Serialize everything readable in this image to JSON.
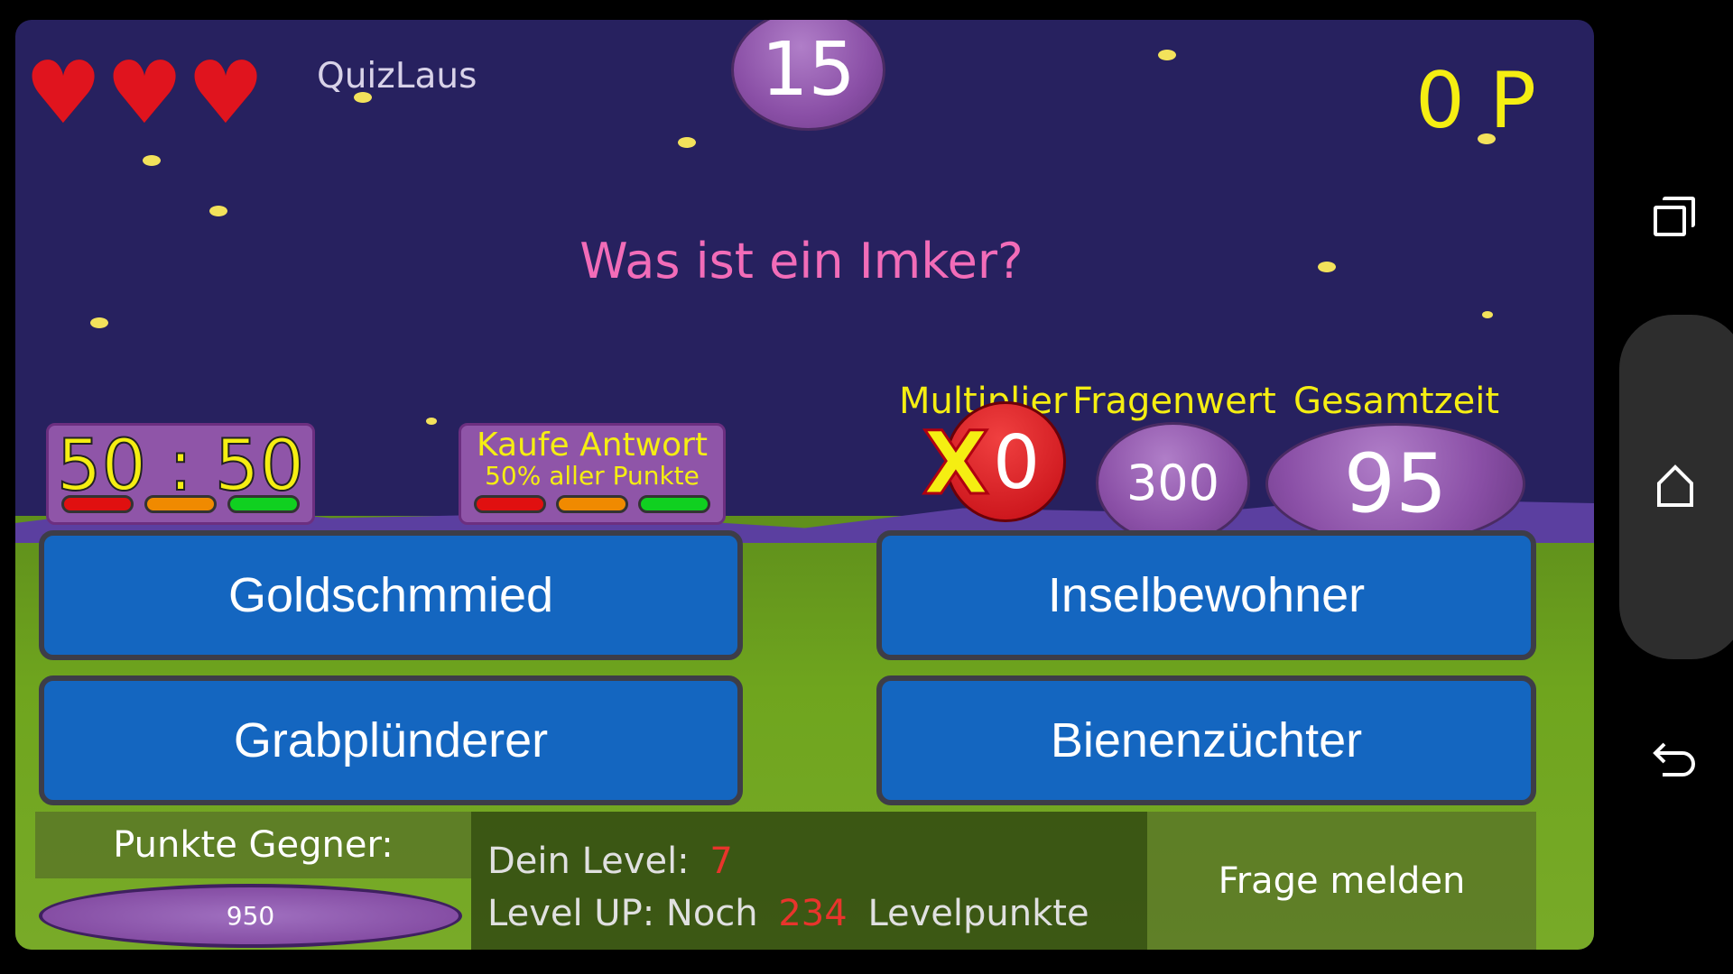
{
  "app_title": "QuizLaus",
  "lives": 3,
  "question_number": "15",
  "score": "0 P",
  "question": "Was ist ein Imker?",
  "jokers": {
    "fifty_fifty": "50 : 50",
    "buy_answer_title": "Kaufe Antwort",
    "buy_answer_sub": "50% aller Punkte"
  },
  "stats": {
    "multiplier_label": "Multiplier",
    "multiplier_value": "0",
    "multiplier_symbol": "X",
    "question_value_label": "Fragenwert",
    "question_value": "300",
    "total_time_label": "Gesamtzeit",
    "total_time": "95"
  },
  "answers": [
    "Goldschmmied",
    "Inselbewohner",
    "Grabplünderer",
    "Bienenzüchter"
  ],
  "footer": {
    "opponent_label": "Punkte Gegner:",
    "opponent_points": "950",
    "level_label": "Dein Level:",
    "level": "7",
    "levelup_prefix": "Level UP: Noch",
    "levelup_points": "234",
    "levelup_suffix": "Levelpunkte",
    "report": "Frage melden"
  },
  "colors": {
    "accent_yellow": "#f5ee12",
    "question_pink": "#f26cb8",
    "level_red": "#e8342c"
  },
  "nav_icons": [
    "recent-apps-icon",
    "home-icon",
    "back-icon"
  ]
}
